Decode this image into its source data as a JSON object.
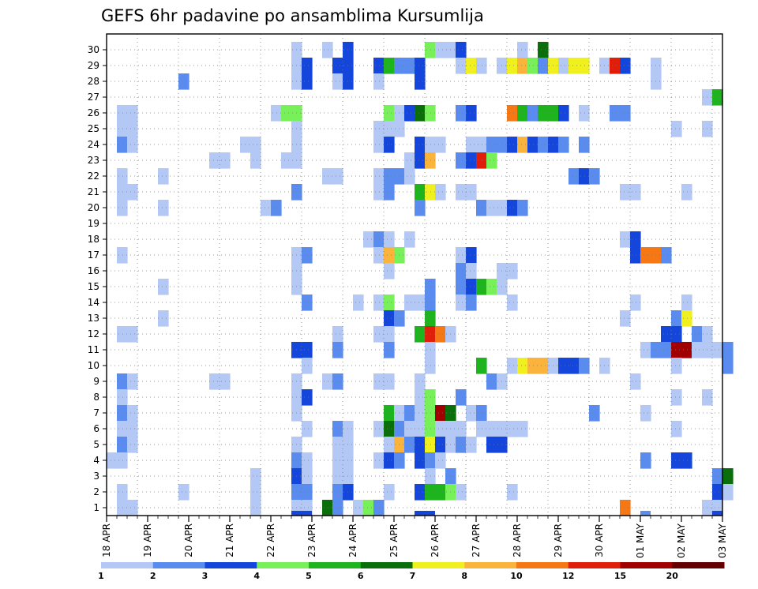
{
  "chart_data": {
    "type": "heatmap",
    "title": "GEFS 6hr padavine po ansamblima Kursumlija",
    "xlabel": "",
    "ylabel": "",
    "x_tick_labels": [
      "18 APR",
      "19 APR",
      "20 APR",
      "21 APR",
      "22 APR",
      "23 APR",
      "24 APR",
      "25 APR",
      "26 APR",
      "27 APR",
      "28 APR",
      "29 APR",
      "30 APR",
      "01 MAY",
      "02 MAY",
      "03 MAY"
    ],
    "y_tick_labels": [
      1,
      2,
      3,
      4,
      5,
      6,
      7,
      8,
      9,
      10,
      11,
      12,
      13,
      14,
      15,
      16,
      17,
      18,
      19,
      20,
      21,
      22,
      23,
      24,
      25,
      26,
      27,
      28,
      29,
      30
    ],
    "x_range": [
      "18 APR 00z",
      "03 MAY 00z"
    ],
    "time_step_hours": 6,
    "y_range": [
      1,
      30
    ],
    "grid": true,
    "legend": {
      "position": "bottom",
      "levels": [
        1,
        2,
        3,
        4,
        5,
        6,
        7,
        8,
        10,
        12,
        15,
        20
      ],
      "colors": [
        "#b4c8f5",
        "#5a8cf0",
        "#1446dc",
        "#78f05a",
        "#1eb41e",
        "#0a6e0a",
        "#f0f01e",
        "#fab43c",
        "#f57814",
        "#e11e0a",
        "#a00000",
        "#640000"
      ]
    },
    "color_classes": [
      "1-2",
      "2-3",
      "3-4",
      "4-5",
      "5-6",
      "6-7",
      "7-8",
      "8-10",
      "10-12",
      "12-15",
      "15-20",
      ">20"
    ],
    "cells_format": "[member, step_index_from_18APR00z, color_class_index]",
    "cells": [
      [
        30,
        21,
        0
      ],
      [
        30,
        18,
        0
      ],
      [
        30,
        23,
        2
      ],
      [
        30,
        33,
        0
      ],
      [
        30,
        31,
        3
      ],
      [
        30,
        32,
        0
      ],
      [
        30,
        34,
        2
      ],
      [
        30,
        40,
        0
      ],
      [
        30,
        42,
        5
      ],
      [
        29,
        18,
        0
      ],
      [
        29,
        19,
        2
      ],
      [
        29,
        22,
        2
      ],
      [
        29,
        23,
        2
      ],
      [
        29,
        26,
        2
      ],
      [
        29,
        27,
        4
      ],
      [
        29,
        28,
        1
      ],
      [
        29,
        29,
        1
      ],
      [
        29,
        30,
        2
      ],
      [
        29,
        34,
        0
      ],
      [
        29,
        35,
        6
      ],
      [
        29,
        36,
        0
      ],
      [
        29,
        38,
        0
      ],
      [
        29,
        39,
        6
      ],
      [
        29,
        40,
        7
      ],
      [
        29,
        41,
        3
      ],
      [
        29,
        42,
        1
      ],
      [
        29,
        43,
        6
      ],
      [
        29,
        44,
        0
      ],
      [
        29,
        45,
        6
      ],
      [
        29,
        46,
        6
      ],
      [
        29,
        48,
        0
      ],
      [
        29,
        49,
        9
      ],
      [
        29,
        50,
        2
      ],
      [
        29,
        53,
        0
      ],
      [
        28,
        7,
        1
      ],
      [
        28,
        18,
        0
      ],
      [
        28,
        19,
        2
      ],
      [
        28,
        22,
        0
      ],
      [
        28,
        23,
        2
      ],
      [
        28,
        26,
        0
      ],
      [
        28,
        30,
        2
      ],
      [
        28,
        53,
        0
      ],
      [
        27,
        58,
        0
      ],
      [
        27,
        59,
        4
      ],
      [
        26,
        1,
        0
      ],
      [
        26,
        2,
        0
      ],
      [
        26,
        16,
        0
      ],
      [
        26,
        17,
        3
      ],
      [
        26,
        18,
        3
      ],
      [
        26,
        27,
        3
      ],
      [
        26,
        28,
        0
      ],
      [
        26,
        29,
        2
      ],
      [
        26,
        30,
        5
      ],
      [
        26,
        31,
        3
      ],
      [
        26,
        34,
        1
      ],
      [
        26,
        35,
        2
      ],
      [
        26,
        39,
        8
      ],
      [
        26,
        40,
        4
      ],
      [
        26,
        41,
        1
      ],
      [
        26,
        42,
        4
      ],
      [
        26,
        43,
        4
      ],
      [
        26,
        44,
        2
      ],
      [
        26,
        46,
        0
      ],
      [
        26,
        49,
        1
      ],
      [
        26,
        50,
        1
      ],
      [
        25,
        1,
        0
      ],
      [
        25,
        2,
        0
      ],
      [
        25,
        18,
        0
      ],
      [
        25,
        26,
        0
      ],
      [
        25,
        27,
        0
      ],
      [
        25,
        28,
        0
      ],
      [
        25,
        55,
        0
      ],
      [
        25,
        58,
        0
      ],
      [
        24,
        1,
        1
      ],
      [
        24,
        2,
        0
      ],
      [
        24,
        13,
        0
      ],
      [
        24,
        14,
        0
      ],
      [
        24,
        18,
        0
      ],
      [
        24,
        26,
        0
      ],
      [
        24,
        27,
        2
      ],
      [
        24,
        30,
        2
      ],
      [
        24,
        31,
        0
      ],
      [
        24,
        32,
        0
      ],
      [
        24,
        35,
        0
      ],
      [
        24,
        36,
        0
      ],
      [
        24,
        37,
        1
      ],
      [
        24,
        38,
        1
      ],
      [
        24,
        39,
        2
      ],
      [
        24,
        40,
        7
      ],
      [
        24,
        41,
        2
      ],
      [
        24,
        42,
        1
      ],
      [
        24,
        43,
        2
      ],
      [
        24,
        44,
        1
      ],
      [
        24,
        46,
        1
      ],
      [
        23,
        10,
        0
      ],
      [
        23,
        11,
        0
      ],
      [
        23,
        14,
        0
      ],
      [
        23,
        17,
        0
      ],
      [
        23,
        18,
        0
      ],
      [
        23,
        29,
        0
      ],
      [
        23,
        30,
        2
      ],
      [
        23,
        31,
        7
      ],
      [
        23,
        34,
        1
      ],
      [
        23,
        35,
        2
      ],
      [
        23,
        36,
        9
      ],
      [
        23,
        37,
        3
      ],
      [
        22,
        1,
        0
      ],
      [
        22,
        5,
        0
      ],
      [
        22,
        21,
        0
      ],
      [
        22,
        22,
        0
      ],
      [
        22,
        26,
        0
      ],
      [
        22,
        27,
        1
      ],
      [
        22,
        28,
        1
      ],
      [
        22,
        29,
        0
      ],
      [
        22,
        45,
        1
      ],
      [
        22,
        46,
        2
      ],
      [
        22,
        47,
        1
      ],
      [
        21,
        1,
        0
      ],
      [
        21,
        2,
        0
      ],
      [
        21,
        18,
        1
      ],
      [
        21,
        26,
        0
      ],
      [
        21,
        27,
        1
      ],
      [
        21,
        30,
        4
      ],
      [
        21,
        31,
        6
      ],
      [
        21,
        32,
        0
      ],
      [
        21,
        34,
        0
      ],
      [
        21,
        35,
        0
      ],
      [
        21,
        50,
        0
      ],
      [
        21,
        51,
        0
      ],
      [
        21,
        56,
        0
      ],
      [
        20,
        1,
        0
      ],
      [
        20,
        5,
        0
      ],
      [
        20,
        15,
        0
      ],
      [
        20,
        16,
        1
      ],
      [
        20,
        30,
        1
      ],
      [
        20,
        36,
        1
      ],
      [
        20,
        37,
        0
      ],
      [
        20,
        38,
        0
      ],
      [
        20,
        39,
        2
      ],
      [
        20,
        40,
        1
      ],
      [
        18,
        25,
        0
      ],
      [
        18,
        26,
        1
      ],
      [
        18,
        27,
        0
      ],
      [
        18,
        29,
        0
      ],
      [
        18,
        50,
        0
      ],
      [
        18,
        51,
        2
      ],
      [
        17,
        1,
        0
      ],
      [
        17,
        18,
        0
      ],
      [
        17,
        19,
        1
      ],
      [
        17,
        26,
        0
      ],
      [
        17,
        27,
        7
      ],
      [
        17,
        28,
        3
      ],
      [
        17,
        34,
        0
      ],
      [
        17,
        35,
        2
      ],
      [
        17,
        51,
        2
      ],
      [
        17,
        52,
        8
      ],
      [
        17,
        53,
        8
      ],
      [
        17,
        54,
        1
      ],
      [
        16,
        18,
        0
      ],
      [
        16,
        27,
        0
      ],
      [
        16,
        34,
        1
      ],
      [
        16,
        35,
        0
      ],
      [
        16,
        38,
        0
      ],
      [
        16,
        39,
        0
      ],
      [
        15,
        5,
        0
      ],
      [
        15,
        18,
        0
      ],
      [
        15,
        31,
        1
      ],
      [
        15,
        34,
        1
      ],
      [
        15,
        35,
        2
      ],
      [
        15,
        36,
        4
      ],
      [
        15,
        37,
        3
      ],
      [
        15,
        38,
        0
      ],
      [
        14,
        19,
        1
      ],
      [
        14,
        24,
        0
      ],
      [
        14,
        26,
        0
      ],
      [
        14,
        27,
        3
      ],
      [
        14,
        29,
        0
      ],
      [
        14,
        30,
        0
      ],
      [
        14,
        31,
        1
      ],
      [
        14,
        34,
        0
      ],
      [
        14,
        35,
        1
      ],
      [
        14,
        39,
        0
      ],
      [
        14,
        51,
        0
      ],
      [
        14,
        56,
        0
      ],
      [
        13,
        5,
        0
      ],
      [
        13,
        27,
        2
      ],
      [
        13,
        28,
        1
      ],
      [
        13,
        31,
        4
      ],
      [
        13,
        50,
        0
      ],
      [
        13,
        55,
        1
      ],
      [
        13,
        56,
        6
      ],
      [
        12,
        1,
        0
      ],
      [
        12,
        2,
        0
      ],
      [
        12,
        22,
        0
      ],
      [
        12,
        26,
        0
      ],
      [
        12,
        27,
        0
      ],
      [
        12,
        30,
        4
      ],
      [
        12,
        31,
        9
      ],
      [
        12,
        32,
        8
      ],
      [
        12,
        33,
        0
      ],
      [
        12,
        54,
        2
      ],
      [
        12,
        55,
        2
      ],
      [
        12,
        57,
        1
      ],
      [
        12,
        58,
        0
      ],
      [
        11,
        18,
        2
      ],
      [
        11,
        19,
        2
      ],
      [
        11,
        22,
        1
      ],
      [
        11,
        27,
        1
      ],
      [
        11,
        31,
        0
      ],
      [
        11,
        52,
        0
      ],
      [
        11,
        53,
        1
      ],
      [
        11,
        54,
        1
      ],
      [
        11,
        55,
        10
      ],
      [
        11,
        56,
        10
      ],
      [
        11,
        57,
        0
      ],
      [
        11,
        58,
        0
      ],
      [
        11,
        59,
        0
      ],
      [
        11,
        60,
        1
      ],
      [
        10,
        19,
        0
      ],
      [
        10,
        31,
        0
      ],
      [
        10,
        36,
        4
      ],
      [
        10,
        39,
        0
      ],
      [
        10,
        40,
        6
      ],
      [
        10,
        41,
        7
      ],
      [
        10,
        42,
        7
      ],
      [
        10,
        43,
        0
      ],
      [
        10,
        44,
        2
      ],
      [
        10,
        45,
        2
      ],
      [
        10,
        46,
        1
      ],
      [
        10,
        48,
        0
      ],
      [
        10,
        55,
        0
      ],
      [
        10,
        60,
        1
      ],
      [
        9,
        1,
        1
      ],
      [
        9,
        2,
        0
      ],
      [
        9,
        10,
        0
      ],
      [
        9,
        11,
        0
      ],
      [
        9,
        18,
        0
      ],
      [
        9,
        21,
        0
      ],
      [
        9,
        22,
        1
      ],
      [
        9,
        26,
        0
      ],
      [
        9,
        27,
        0
      ],
      [
        9,
        30,
        0
      ],
      [
        9,
        37,
        1
      ],
      [
        9,
        38,
        0
      ],
      [
        9,
        51,
        0
      ],
      [
        8,
        1,
        0
      ],
      [
        8,
        18,
        0
      ],
      [
        8,
        19,
        2
      ],
      [
        8,
        30,
        0
      ],
      [
        8,
        31,
        3
      ],
      [
        8,
        34,
        1
      ],
      [
        8,
        55,
        0
      ],
      [
        8,
        58,
        0
      ],
      [
        7,
        1,
        1
      ],
      [
        7,
        2,
        0
      ],
      [
        7,
        18,
        0
      ],
      [
        7,
        27,
        4
      ],
      [
        7,
        28,
        0
      ],
      [
        7,
        29,
        1
      ],
      [
        7,
        30,
        0
      ],
      [
        7,
        31,
        3
      ],
      [
        7,
        32,
        10
      ],
      [
        7,
        33,
        5
      ],
      [
        7,
        35,
        0
      ],
      [
        7,
        36,
        1
      ],
      [
        7,
        47,
        1
      ],
      [
        7,
        52,
        0
      ],
      [
        6,
        1,
        0
      ],
      [
        6,
        2,
        0
      ],
      [
        6,
        19,
        0
      ],
      [
        6,
        22,
        1
      ],
      [
        6,
        23,
        0
      ],
      [
        6,
        26,
        0
      ],
      [
        6,
        27,
        5
      ],
      [
        6,
        28,
        1
      ],
      [
        6,
        29,
        0
      ],
      [
        6,
        30,
        0
      ],
      [
        6,
        31,
        3
      ],
      [
        6,
        32,
        0
      ],
      [
        6,
        33,
        0
      ],
      [
        6,
        34,
        0
      ],
      [
        6,
        36,
        0
      ],
      [
        6,
        37,
        0
      ],
      [
        6,
        38,
        0
      ],
      [
        6,
        39,
        0
      ],
      [
        6,
        40,
        0
      ],
      [
        6,
        55,
        0
      ],
      [
        5,
        1,
        1
      ],
      [
        5,
        2,
        0
      ],
      [
        5,
        18,
        0
      ],
      [
        5,
        22,
        0
      ],
      [
        5,
        23,
        0
      ],
      [
        5,
        27,
        0
      ],
      [
        5,
        28,
        7
      ],
      [
        5,
        29,
        1
      ],
      [
        5,
        30,
        2
      ],
      [
        5,
        31,
        6
      ],
      [
        5,
        32,
        2
      ],
      [
        5,
        33,
        0
      ],
      [
        5,
        34,
        1
      ],
      [
        5,
        35,
        0
      ],
      [
        5,
        37,
        2
      ],
      [
        5,
        38,
        2
      ],
      [
        4,
        0,
        0
      ],
      [
        4,
        1,
        0
      ],
      [
        4,
        18,
        1
      ],
      [
        4,
        19,
        0
      ],
      [
        4,
        22,
        0
      ],
      [
        4,
        23,
        0
      ],
      [
        4,
        26,
        0
      ],
      [
        4,
        27,
        2
      ],
      [
        4,
        28,
        1
      ],
      [
        4,
        30,
        2
      ],
      [
        4,
        31,
        1
      ],
      [
        4,
        32,
        0
      ],
      [
        4,
        52,
        1
      ],
      [
        4,
        55,
        2
      ],
      [
        4,
        56,
        2
      ],
      [
        3,
        14,
        0
      ],
      [
        3,
        18,
        2
      ],
      [
        3,
        19,
        0
      ],
      [
        3,
        22,
        0
      ],
      [
        3,
        23,
        0
      ],
      [
        3,
        31,
        0
      ],
      [
        3,
        33,
        1
      ],
      [
        3,
        59,
        1
      ],
      [
        3,
        60,
        5
      ],
      [
        2,
        1,
        0
      ],
      [
        2,
        7,
        0
      ],
      [
        2,
        14,
        0
      ],
      [
        2,
        18,
        1
      ],
      [
        2,
        19,
        1
      ],
      [
        2,
        22,
        1
      ],
      [
        2,
        23,
        2
      ],
      [
        2,
        27,
        0
      ],
      [
        2,
        30,
        2
      ],
      [
        2,
        31,
        4
      ],
      [
        2,
        32,
        4
      ],
      [
        2,
        33,
        3
      ],
      [
        2,
        34,
        0
      ],
      [
        2,
        39,
        0
      ],
      [
        2,
        59,
        2
      ],
      [
        2,
        60,
        0
      ],
      [
        1,
        1,
        0
      ],
      [
        1,
        2,
        0
      ],
      [
        1,
        14,
        0
      ],
      [
        1,
        18,
        0
      ],
      [
        1,
        19,
        0
      ],
      [
        1,
        21,
        5
      ],
      [
        1,
        22,
        1
      ],
      [
        1,
        24,
        0
      ],
      [
        1,
        25,
        3
      ],
      [
        1,
        26,
        1
      ],
      [
        1,
        50,
        8
      ],
      [
        1,
        58,
        0
      ],
      [
        1,
        59,
        0
      ]
    ],
    "edge_marks": [
      [
        18,
        2
      ],
      [
        19,
        2
      ],
      [
        30,
        2
      ],
      [
        31,
        2
      ],
      [
        52,
        1
      ],
      [
        59,
        2
      ]
    ]
  }
}
